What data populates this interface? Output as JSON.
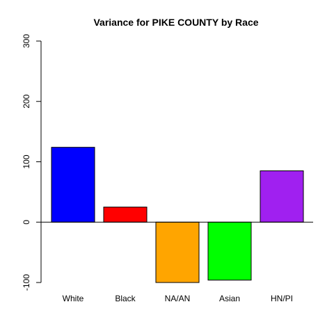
{
  "chart_data": {
    "type": "bar",
    "title": "Variance for PIKE COUNTY by Race",
    "xlabel": "",
    "ylabel": "",
    "categories": [
      "White",
      "Black",
      "NA/AN",
      "Asian",
      "HN/PI"
    ],
    "values": [
      124,
      25,
      -100,
      -96,
      85
    ],
    "colors": [
      "#0000ff",
      "#ff0000",
      "#ffa500",
      "#00ff00",
      "#a020f0"
    ],
    "ylim": [
      -100,
      300
    ],
    "yticks": [
      -100,
      0,
      100,
      200,
      300
    ],
    "ytick_labels": [
      "-100",
      "0",
      "100",
      "200",
      "300"
    ],
    "grid": false,
    "baseline": 0
  }
}
